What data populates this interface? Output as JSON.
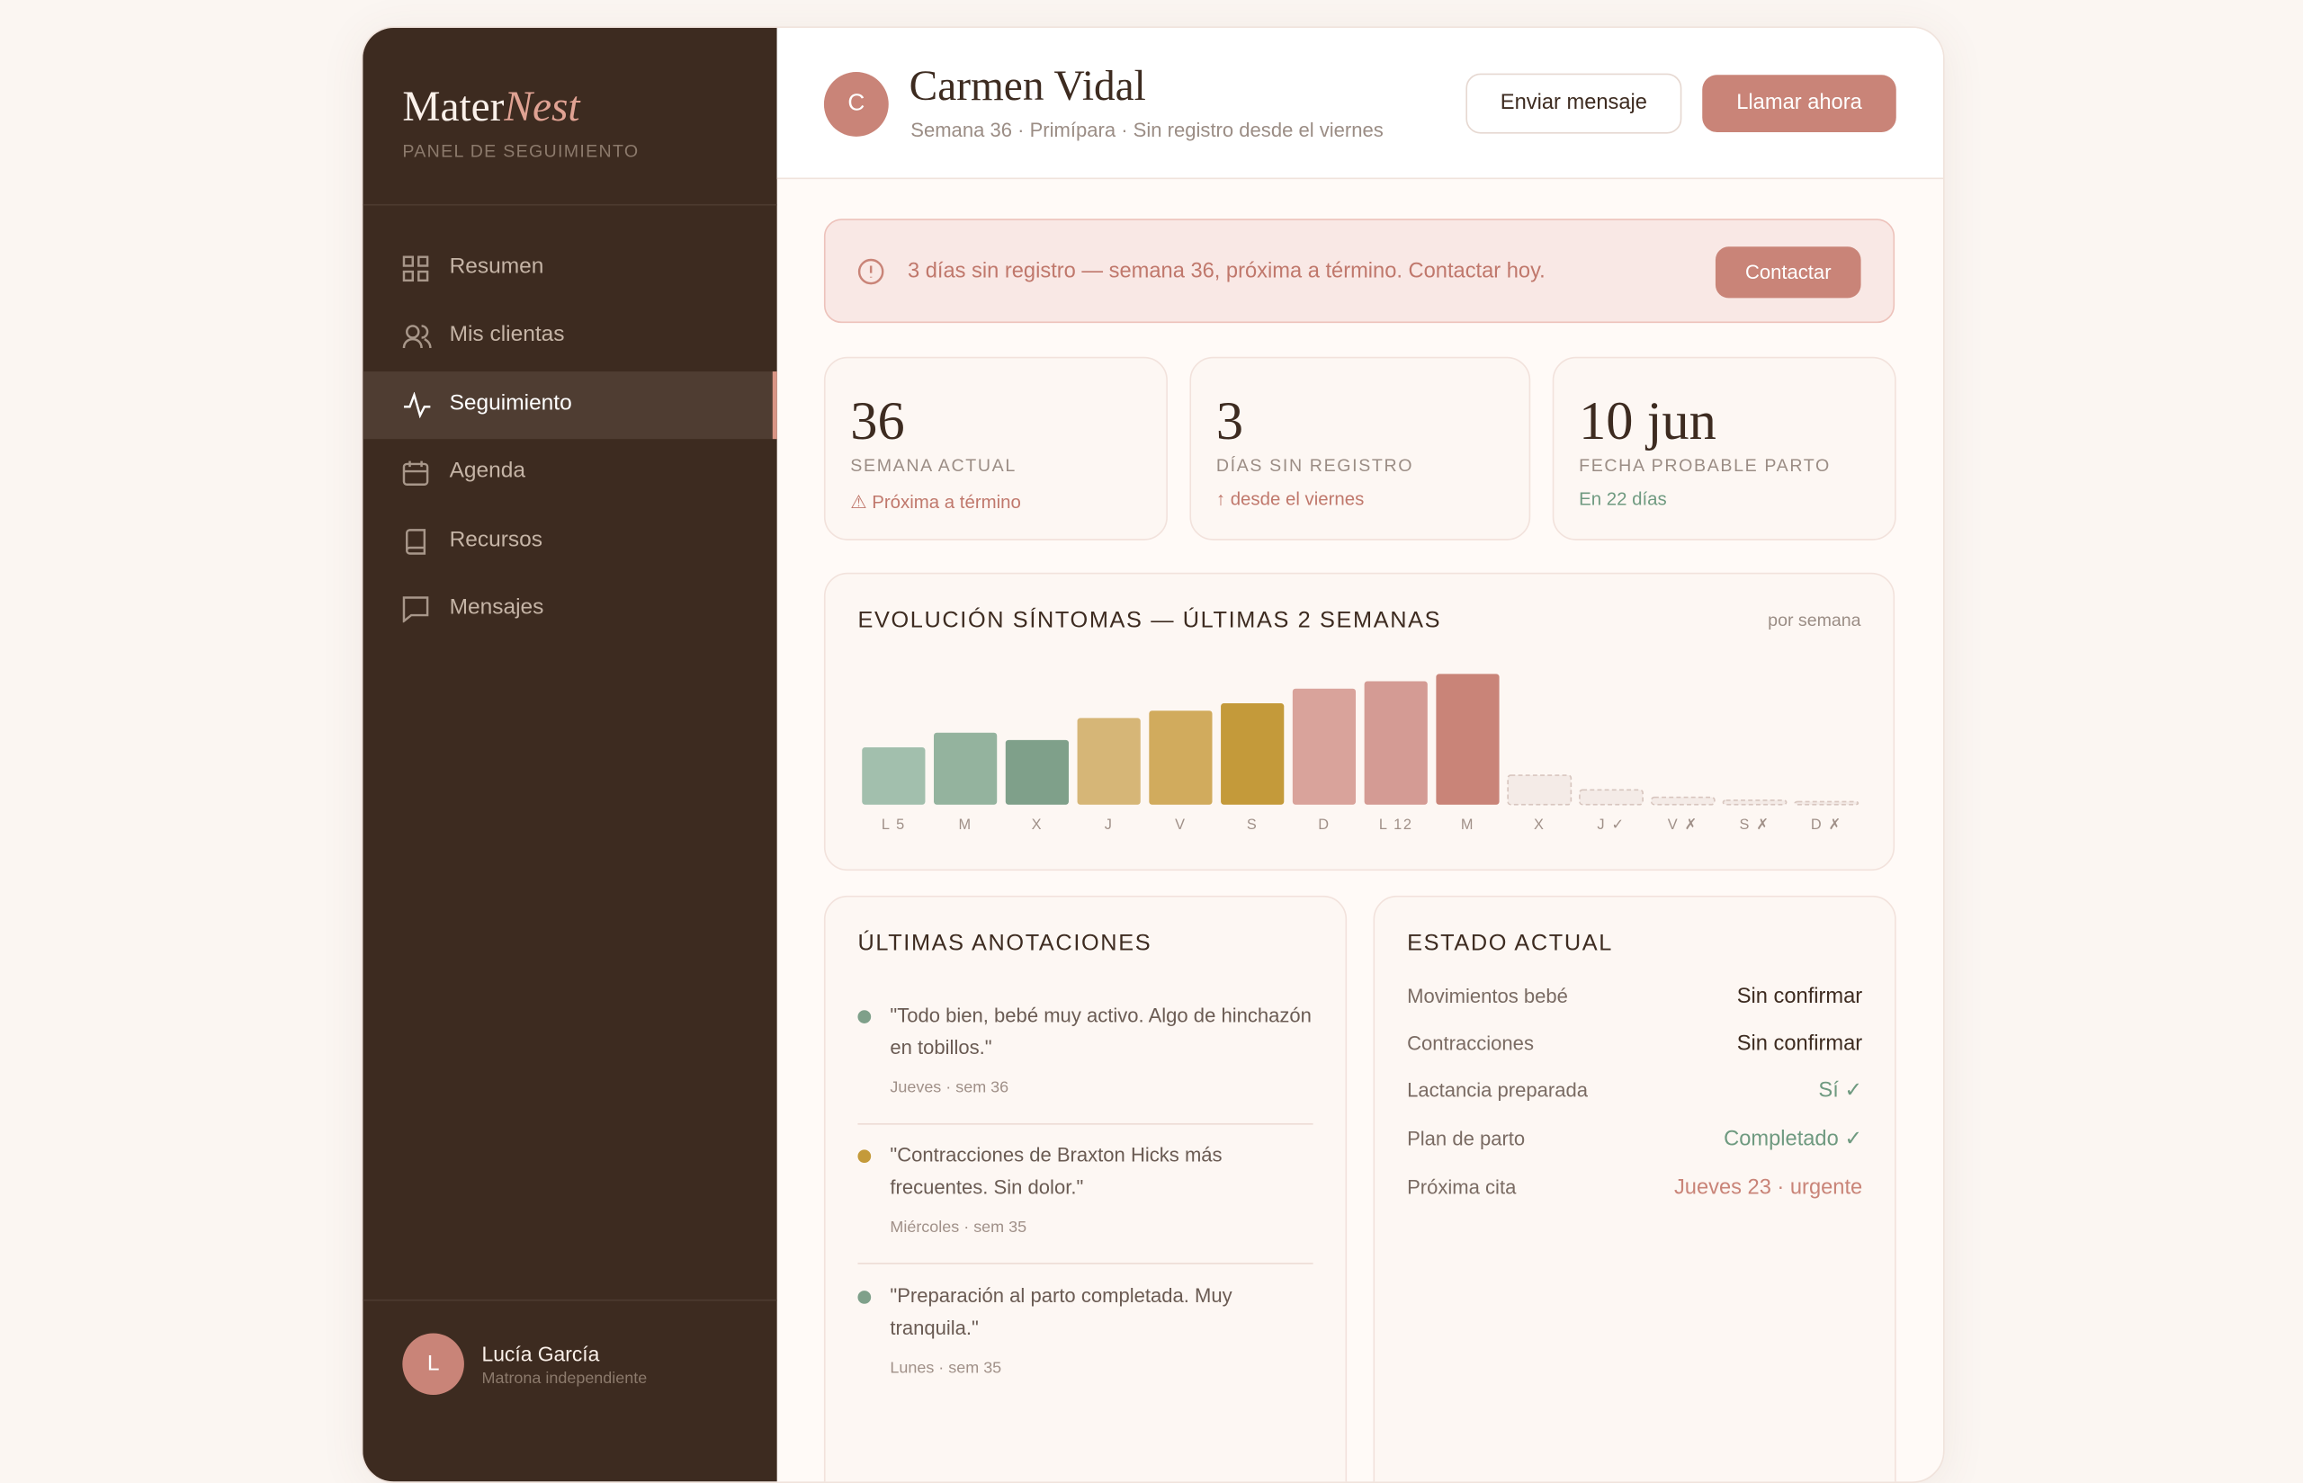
{
  "sidebar": {
    "brand": {
      "main": "Mater",
      "accent": "Nest"
    },
    "subtitle": "PANEL DE SEGUIMIENTO",
    "nav": [
      "Resumen",
      "Mis clientas",
      "Seguimiento",
      "Agenda",
      "Recursos",
      "Mensajes"
    ],
    "user": {
      "initial": "L",
      "name": "Lucía García",
      "role": "Matrona independiente"
    }
  },
  "header": {
    "initial": "C",
    "name": "Carmen Vidal",
    "subtitle": "Semana 36 · Primípara · Sin registro desde el viernes",
    "buttons": [
      "Enviar mensaje",
      "Llamar ahora"
    ]
  },
  "alert": {
    "text": "3 días sin registro — semana 36, próxima a término. Contactar hoy.",
    "button": "Contactar"
  },
  "stats": [
    {
      "value": 36,
      "label": "SEMANA ACTUAL",
      "note": "⚠ Próxima a término"
    },
    {
      "value": 3,
      "label": "DÍAS SIN REGISTRO",
      "note": "↑ desde el viernes"
    },
    {
      "value": "10 jun",
      "label": "FECHA PROBABLE PARTO",
      "note": "En 22 días"
    }
  ],
  "chart_data": {
    "type": "bar",
    "title": "EVOLUCIÓN SÍNTOMAS — ÚLTIMAS 2 SEMANAS",
    "subtitle": "por semana",
    "categories": [
      "L 5",
      "M",
      "X",
      "J",
      "V",
      "S",
      "D",
      "L 12",
      "M",
      "X",
      "J ✓",
      "V ✗",
      "S ✗",
      "D ✗"
    ],
    "values": [
      3.9,
      4.9,
      4.4,
      5.9,
      6.4,
      6.9,
      7.9,
      8.4,
      8.9,
      2,
      1,
      0.5,
      0.3,
      0.2
    ],
    "colors": [
      "#a2bfad",
      "#94b39e",
      "#7fa08a",
      "#d6b677",
      "#d1ab5d",
      "#c49a3a",
      "#d9a39b",
      "#d49b94",
      "#c98478",
      "#f4ebe7",
      "#f4ebe7",
      "#f4ebe7",
      "#f4ebe7",
      "#f4ebe7"
    ],
    "dashed": [
      false,
      false,
      false,
      false,
      false,
      false,
      false,
      false,
      false,
      true,
      true,
      true,
      true,
      true
    ],
    "ylim": [
      0,
      10
    ]
  },
  "notes": {
    "title": "ÚLTIMAS ANOTACIONES",
    "items": [
      {
        "text": "\"Todo bien, bebé muy activo. Algo de hinchazón en tobillos.\"",
        "meta": "Jueves · sem 36"
      },
      {
        "text": "\"Contracciones de Braxton Hicks más frecuentes. Sin dolor.\"",
        "meta": "Miércoles · sem 35"
      },
      {
        "text": "\"Preparación al parto completada. Muy tranquila.\"",
        "meta": "Lunes · sem 35"
      }
    ]
  },
  "status": {
    "title": "ESTADO ACTUAL",
    "rows": [
      [
        "Movimientos bebé",
        "Sin confirmar"
      ],
      [
        "Contracciones",
        "Sin confirmar"
      ],
      [
        "Lactancia preparada",
        "Sí ✓"
      ],
      [
        "Plan de parto",
        "Completado ✓"
      ],
      [
        "Próxima cita",
        "Jueves 23 · urgente"
      ]
    ]
  }
}
